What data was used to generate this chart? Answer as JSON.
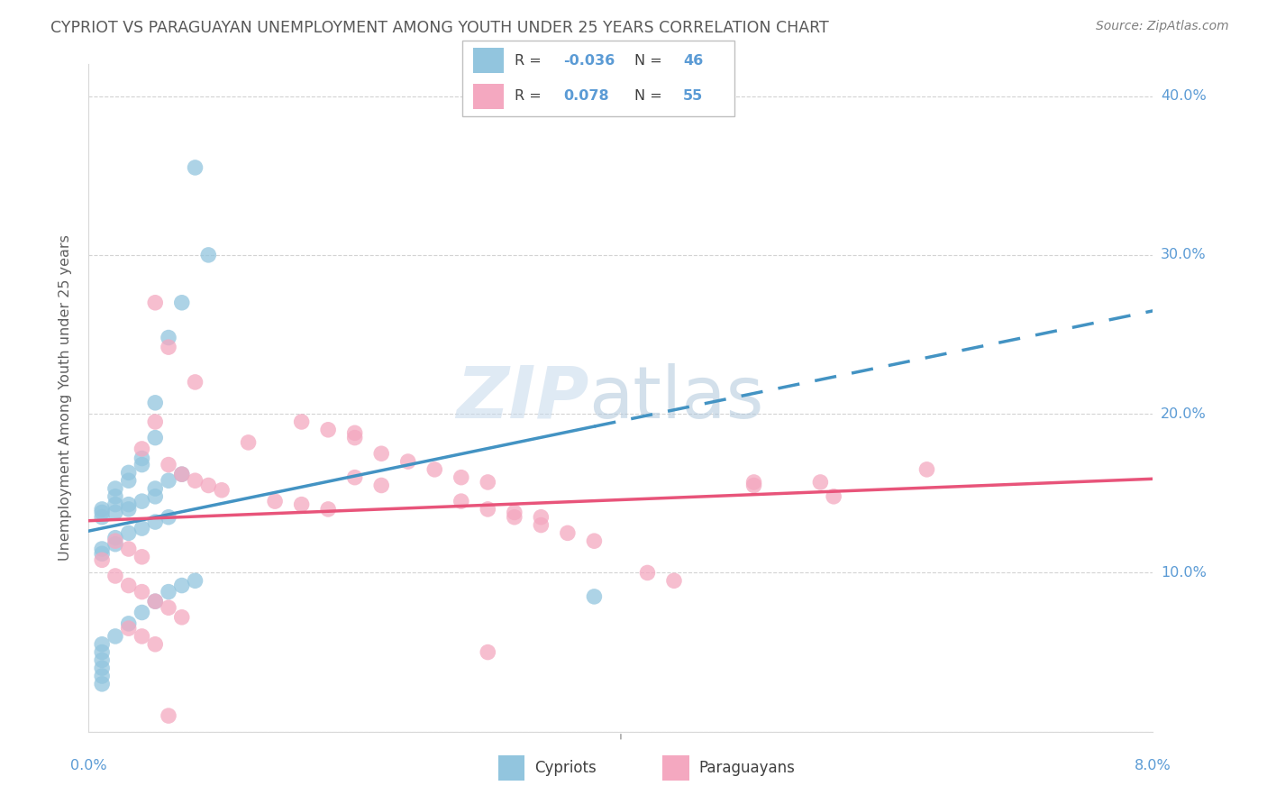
{
  "title": "CYPRIOT VS PARAGUAYAN UNEMPLOYMENT AMONG YOUTH UNDER 25 YEARS CORRELATION CHART",
  "source": "Source: ZipAtlas.com",
  "ylabel": "Unemployment Among Youth under 25 years",
  "xmin": 0.0,
  "xmax": 0.08,
  "ymin": 0.0,
  "ymax": 0.42,
  "yticks": [
    0.0,
    0.1,
    0.2,
    0.3,
    0.4
  ],
  "ytick_labels": [
    "",
    "10.0%",
    "20.0%",
    "30.0%",
    "40.0%"
  ],
  "watermark": "ZIPatlas",
  "legend_R_blue": "-0.036",
  "legend_N_blue": "46",
  "legend_R_pink": "0.078",
  "legend_N_pink": "55",
  "blue_color": "#92c5de",
  "pink_color": "#f4a8c0",
  "blue_line_color": "#4393c3",
  "pink_line_color": "#e8547a",
  "axis_color": "#5b9bd5",
  "title_color": "#595959",
  "source_color": "#808080",
  "grid_color": "#c8c8c8",
  "blue_scatter_x": [
    0.008,
    0.009,
    0.007,
    0.006,
    0.005,
    0.005,
    0.004,
    0.004,
    0.003,
    0.003,
    0.002,
    0.002,
    0.002,
    0.001,
    0.001,
    0.001,
    0.007,
    0.006,
    0.005,
    0.005,
    0.004,
    0.003,
    0.003,
    0.002,
    0.006,
    0.005,
    0.004,
    0.003,
    0.002,
    0.002,
    0.001,
    0.001,
    0.008,
    0.007,
    0.006,
    0.005,
    0.004,
    0.003,
    0.002,
    0.001,
    0.038,
    0.001,
    0.001,
    0.001,
    0.001,
    0.001
  ],
  "blue_scatter_y": [
    0.355,
    0.3,
    0.27,
    0.248,
    0.207,
    0.185,
    0.172,
    0.168,
    0.163,
    0.158,
    0.153,
    0.148,
    0.143,
    0.14,
    0.138,
    0.135,
    0.162,
    0.158,
    0.153,
    0.148,
    0.145,
    0.143,
    0.14,
    0.138,
    0.135,
    0.132,
    0.128,
    0.125,
    0.122,
    0.118,
    0.115,
    0.112,
    0.095,
    0.092,
    0.088,
    0.082,
    0.075,
    0.068,
    0.06,
    0.055,
    0.085,
    0.05,
    0.045,
    0.04,
    0.035,
    0.03
  ],
  "pink_scatter_x": [
    0.005,
    0.006,
    0.008,
    0.005,
    0.004,
    0.006,
    0.007,
    0.008,
    0.009,
    0.01,
    0.012,
    0.014,
    0.016,
    0.018,
    0.02,
    0.022,
    0.024,
    0.026,
    0.028,
    0.03,
    0.016,
    0.018,
    0.02,
    0.022,
    0.032,
    0.034,
    0.036,
    0.038,
    0.02,
    0.05,
    0.042,
    0.044,
    0.05,
    0.055,
    0.063,
    0.056,
    0.028,
    0.03,
    0.032,
    0.034,
    0.002,
    0.003,
    0.004,
    0.001,
    0.002,
    0.003,
    0.004,
    0.005,
    0.006,
    0.007,
    0.003,
    0.004,
    0.005,
    0.006,
    0.03
  ],
  "pink_scatter_y": [
    0.27,
    0.242,
    0.22,
    0.195,
    0.178,
    0.168,
    0.162,
    0.158,
    0.155,
    0.152,
    0.182,
    0.145,
    0.143,
    0.14,
    0.188,
    0.175,
    0.17,
    0.165,
    0.16,
    0.157,
    0.195,
    0.19,
    0.16,
    0.155,
    0.135,
    0.13,
    0.125,
    0.12,
    0.185,
    0.155,
    0.1,
    0.095,
    0.157,
    0.157,
    0.165,
    0.148,
    0.145,
    0.14,
    0.138,
    0.135,
    0.12,
    0.115,
    0.11,
    0.108,
    0.098,
    0.092,
    0.088,
    0.082,
    0.078,
    0.072,
    0.065,
    0.06,
    0.055,
    0.01,
    0.05
  ]
}
